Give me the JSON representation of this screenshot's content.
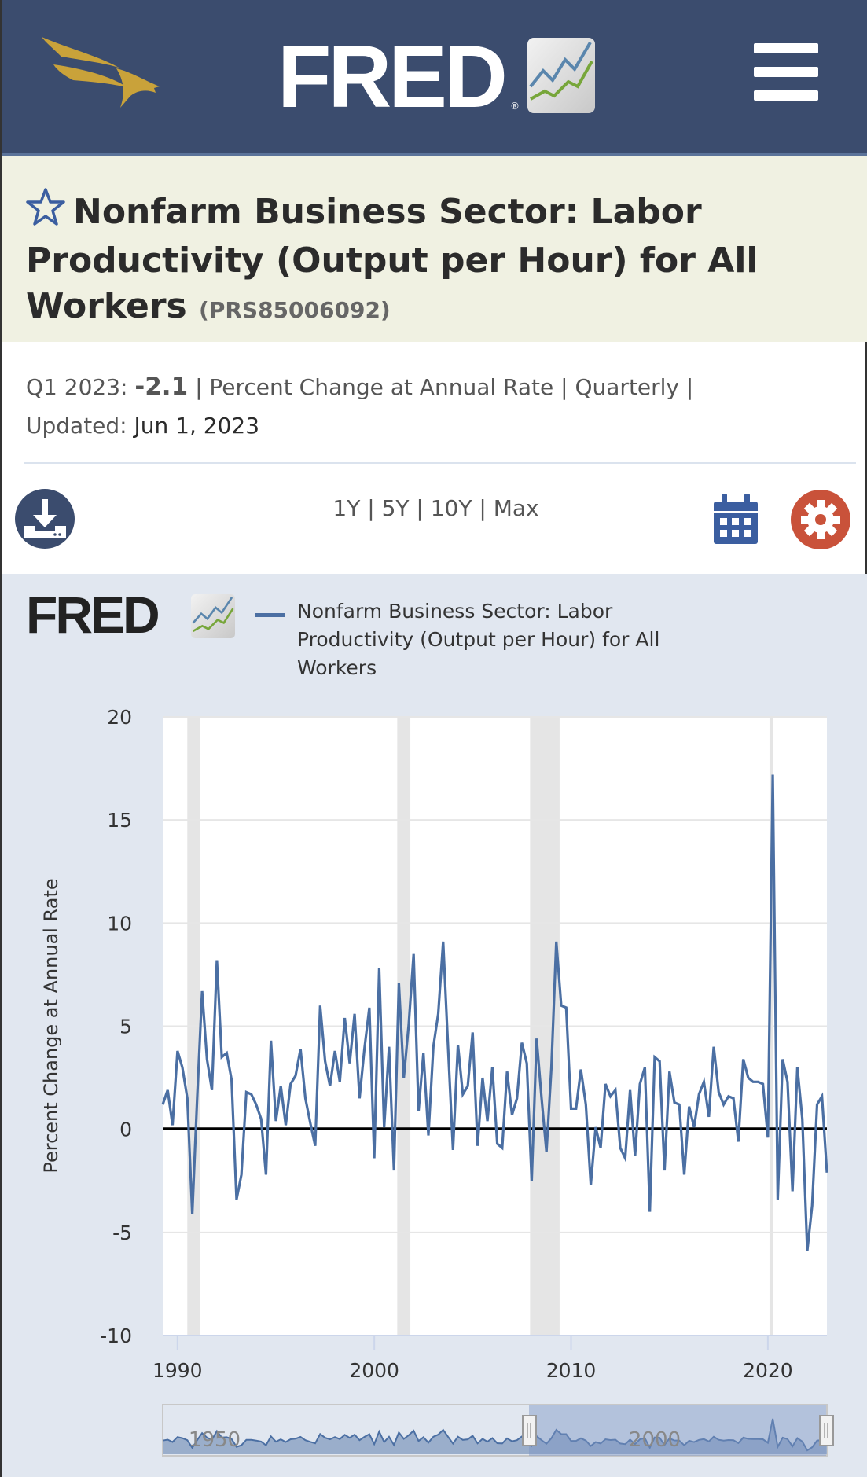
{
  "header": {
    "logo_text": "FRED",
    "brand_icon": "eagle-logo",
    "menu_icon": "hamburger-icon",
    "colors": {
      "bar": "#3b4c6e",
      "eagle": "#c9a23a"
    }
  },
  "series": {
    "title": "Nonfarm Business Sector: Labor Productivity (Output per Hour) for All Workers",
    "id": "(PRS85006092)",
    "period_label": "Q1 2023:",
    "latest_value": "-2.1",
    "units": "Percent Change at Annual Rate",
    "frequency": "Quarterly",
    "updated_label": "Updated:",
    "updated_date": "Jun 1, 2023",
    "sep": "|"
  },
  "toolbar": {
    "ranges": [
      "1Y",
      "5Y",
      "10Y",
      "Max"
    ],
    "download_icon": "download-icon",
    "calendar_icon": "calendar-icon",
    "settings_icon": "gear-icon",
    "colors": {
      "download": "#3b4c6e",
      "calendar": "#3b5ea0",
      "settings": "#c9523a"
    }
  },
  "chart_logo": "FRED",
  "chart_data": {
    "type": "line",
    "legend": [
      {
        "name": "Nonfarm Business Sector: Labor Productivity (Output per Hour) for All Workers",
        "color": "#4b6fa3"
      }
    ],
    "legend_placement": "top",
    "ylabel": "Percent Change at Annual Rate",
    "ylim": [
      -10,
      20
    ],
    "yticks": [
      "20",
      "15",
      "10",
      "5",
      "0",
      "-5",
      "-10"
    ],
    "xticks": [
      "1990",
      "2000",
      "2010",
      "2020"
    ],
    "x_start": "1989 Q2",
    "x_end": "2023 Q1",
    "frequency": "quarterly",
    "grid": true,
    "recessions": [
      [
        "1990-07",
        "1991-03"
      ],
      [
        "2001-03",
        "2001-11"
      ],
      [
        "2007-12",
        "2009-06"
      ],
      [
        "2020-02",
        "2020-04"
      ]
    ],
    "series": [
      {
        "name": "Nonfarm Business Sector: Labor Productivity (Output per Hour) for All Workers",
        "values": [
          1.2,
          1.9,
          0.2,
          3.8,
          3.0,
          1.5,
          -4.1,
          1.5,
          6.7,
          3.4,
          1.9,
          8.2,
          3.5,
          3.7,
          2.4,
          -3.4,
          -2.2,
          1.8,
          1.7,
          1.2,
          0.5,
          -2.2,
          4.3,
          0.4,
          2.1,
          0.2,
          2.2,
          2.6,
          3.9,
          1.5,
          0.3,
          -0.8,
          6.0,
          3.3,
          2.1,
          3.8,
          2.3,
          5.4,
          3.2,
          5.6,
          1.5,
          3.9,
          5.9,
          -1.4,
          7.8,
          0.1,
          4.0,
          -2.0,
          7.1,
          2.5,
          5.1,
          8.5,
          0.9,
          3.7,
          -0.3,
          4.0,
          5.6,
          9.1,
          4.0,
          -1.0,
          4.1,
          1.7,
          2.1,
          4.7,
          -0.8,
          2.5,
          0.4,
          3.0,
          -0.7,
          -0.9,
          2.8,
          0.7,
          1.5,
          4.2,
          3.2,
          -2.5,
          4.4,
          1.5,
          -1.1,
          3.0,
          9.1,
          6.0,
          5.9,
          1.0,
          1.0,
          2.9,
          1.2,
          -2.7,
          0.1,
          -0.9,
          2.2,
          1.6,
          1.9,
          -0.9,
          -1.4,
          1.9,
          -1.3,
          2.2,
          3.0,
          -4.0,
          3.5,
          3.3,
          -2.0,
          2.8,
          1.3,
          1.2,
          -2.2,
          1.1,
          0.1,
          1.7,
          2.3,
          0.6,
          4.0,
          1.8,
          1.2,
          1.6,
          1.5,
          -0.6,
          3.4,
          2.5,
          2.3,
          2.3,
          2.2,
          -0.4,
          17.2,
          -3.4,
          3.4,
          2.3,
          -3.0,
          3.0,
          0.5,
          -5.9,
          -3.7,
          1.2,
          1.6,
          -2.1
        ]
      }
    ],
    "navigator": {
      "labels": [
        "1950",
        "2000"
      ],
      "selected_range": "1989 Q2 - 2023 Q1"
    }
  }
}
